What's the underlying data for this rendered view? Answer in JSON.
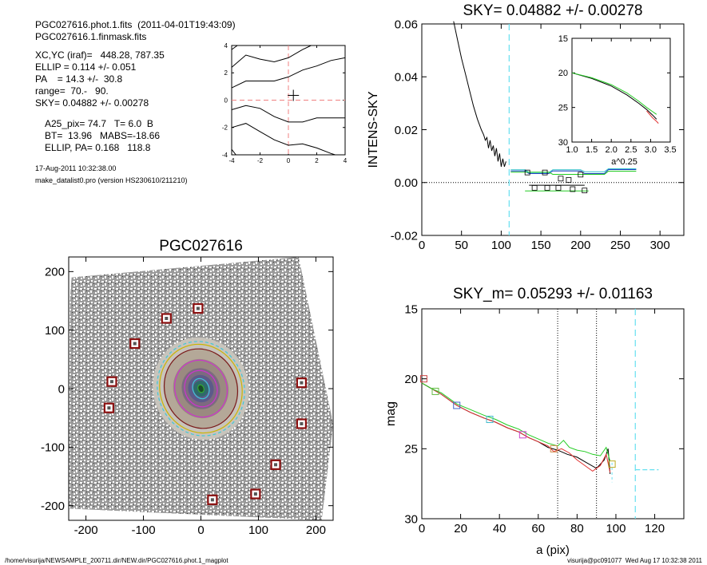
{
  "header": {
    "line1": "PGC027616.phot.1.fits  (2011-04-01T19:43:09)",
    "line2": "PGC027616.1.finmask.fits",
    "params": [
      "XC,YC (iraf)=   448.28, 787.35",
      "ELLIP = 0.114 +/- 0.051",
      "PA    = 14.3 +/-  30.8",
      "range=  70.-   90.",
      "SKY= 0.04882 +/- 0.00278"
    ],
    "derived": [
      "A25_pix= 74.7   T= 6.0  B",
      "BT=  13.96   MABS=-18.66",
      "ELLIP, PA= 0.168   118.8"
    ],
    "date": "17-Aug-2011 10:32:38.00",
    "program": "make_datalist0.pro (version HS230610/211210)"
  },
  "footer": {
    "path": "/home/visurija/NEWSAMPLE_200711.dir/NEW.dir/PGC027616.phot.1_magplot",
    "user": "visurija@pc091077  Wed Aug 17 10:32:38 2011"
  },
  "colors": {
    "axis": "#000000",
    "curve_black": "#000000",
    "curve_green": "#22cc22",
    "curve_red": "#e03030",
    "curve_blue": "#2040c0",
    "curve_cyan": "#30c0c8",
    "dashed_cyan": "#66e0f0",
    "dashed_red": "#f08080",
    "marker_red": "#cc4444",
    "marker_green": "#66bb44",
    "marker_blue": "#4466cc",
    "marker_cyan": "#44bbcc",
    "marker_magenta": "#cc44cc",
    "marker_yellow": "#bbaa22",
    "marker_orange": "#cc8844",
    "mask_box": "#8b1010",
    "ellipse_magenta": "#cc33cc",
    "ellipse_brown": "#7a1a1a",
    "ellipse_yellow": "#ccb400",
    "ellipse_cyan": "#40c8d8",
    "ellipse_green": "#33aa33"
  },
  "chart_data": [
    {
      "id": "contour",
      "type": "contour",
      "xlim": [
        -4,
        4
      ],
      "ylim": [
        -4,
        4
      ],
      "xticks": [
        "-4",
        "-2",
        "0",
        "2",
        "4"
      ],
      "yticks": [
        "-4",
        "-2",
        "0",
        "2",
        "4"
      ],
      "center": [
        0.35,
        0.35
      ]
    },
    {
      "id": "sky",
      "type": "line",
      "title": "SKY= 0.04882 +/- 0.00278",
      "xlabel": "",
      "ylabel": "INTENS-SKY",
      "xlim": [
        0,
        330
      ],
      "ylim": [
        -0.02,
        0.06
      ],
      "xticks": [
        "0",
        "50",
        "100",
        "150",
        "200",
        "250",
        "300"
      ],
      "yticks": [
        "0.06",
        "0.04",
        "0.02",
        "0.00",
        "-0.02"
      ],
      "series": [
        {
          "color": "curve_black",
          "points": [
            [
              40,
              0.061
            ],
            [
              45,
              0.054
            ],
            [
              50,
              0.047
            ],
            [
              55,
              0.041
            ],
            [
              60,
              0.035
            ],
            [
              65,
              0.029
            ],
            [
              70,
              0.024
            ],
            [
              75,
              0.02
            ],
            [
              78,
              0.018
            ],
            [
              80,
              0.016
            ],
            [
              82,
              0.017
            ],
            [
              84,
              0.013
            ],
            [
              86,
              0.016
            ],
            [
              88,
              0.012
            ],
            [
              90,
              0.014
            ],
            [
              92,
              0.01
            ],
            [
              94,
              0.013
            ],
            [
              96,
              0.008
            ],
            [
              98,
              0.011
            ],
            [
              100,
              0.006
            ],
            [
              102,
              0.009
            ],
            [
              104,
              0.006
            ],
            [
              106,
              0.008
            ]
          ]
        },
        {
          "color": "curve_blue",
          "points": [
            [
              112,
              0.0044
            ],
            [
              130,
              0.0044
            ],
            [
              135,
              0.0034
            ],
            [
              160,
              0.0034
            ],
            [
              165,
              0.0044
            ],
            [
              200,
              0.0044
            ],
            [
              205,
              0.0034
            ],
            [
              230,
              0.0034
            ],
            [
              235,
              0.0049
            ],
            [
              270,
              0.0049
            ]
          ]
        },
        {
          "color": "curve_cyan",
          "points": [
            [
              112,
              0.0048
            ],
            [
              130,
              0.0048
            ],
            [
              135,
              0.0038
            ],
            [
              160,
              0.0038
            ],
            [
              165,
              0.0048
            ],
            [
              200,
              0.0048
            ],
            [
              205,
              0.0041
            ],
            [
              230,
              0.0041
            ],
            [
              235,
              0.0052
            ],
            [
              270,
              0.0052
            ]
          ]
        },
        {
          "color": "curve_green",
          "points": [
            [
              112,
              0.0039
            ],
            [
              160,
              0.0039
            ],
            [
              165,
              0.0031
            ],
            [
              230,
              0.0031
            ],
            [
              235,
              0.0043
            ],
            [
              270,
              0.0043
            ]
          ]
        },
        {
          "color": "curve_green",
          "points": [
            [
              130,
              -0.0032
            ],
            [
              210,
              -0.0032
            ]
          ]
        },
        {
          "color": "curve_black",
          "points": [
            [
              135,
              -0.001
            ],
            [
              205,
              -0.001
            ]
          ]
        }
      ],
      "markers": [
        [
          133,
          0.0038
        ],
        [
          155,
          0.0038
        ],
        [
          175,
          0.0015
        ],
        [
          185,
          0.001
        ],
        [
          200,
          0.003
        ],
        [
          142,
          -0.002
        ],
        [
          158,
          -0.002
        ],
        [
          172,
          -0.002
        ],
        [
          190,
          -0.0025
        ],
        [
          205,
          -0.003
        ]
      ],
      "sky_level": 0.0,
      "vline_dashed": 110,
      "inset": {
        "xlim": [
          1.0,
          3.5
        ],
        "ylim": [
          15,
          30
        ],
        "xticks": [
          "1.0",
          "1.5",
          "2.0",
          "2.5",
          "3.0",
          "3.5"
        ],
        "yticks": [
          "15",
          "20",
          "25",
          "30"
        ],
        "xlabel": "a^0.25",
        "series": [
          {
            "color": "curve_black",
            "points": [
              [
                1.0,
                20.0
              ],
              [
                1.5,
                20.8
              ],
              [
                2.0,
                21.9
              ],
              [
                2.4,
                23.2
              ],
              [
                2.7,
                24.4
              ],
              [
                2.9,
                25.3
              ],
              [
                3.05,
                26.1
              ],
              [
                3.15,
                26.7
              ]
            ]
          },
          {
            "color": "curve_red",
            "points": [
              [
                2.9,
                25.5
              ],
              [
                3.05,
                26.5
              ],
              [
                3.15,
                27.0
              ],
              [
                3.2,
                27.3
              ]
            ]
          },
          {
            "color": "curve_green",
            "points": [
              [
                1.0,
                20.0
              ],
              [
                1.5,
                20.7
              ],
              [
                2.0,
                21.7
              ],
              [
                2.4,
                22.9
              ],
              [
                2.7,
                24.1
              ],
              [
                2.9,
                25.0
              ],
              [
                3.05,
                25.6
              ],
              [
                3.15,
                26.0
              ]
            ]
          }
        ]
      }
    },
    {
      "id": "image",
      "type": "image",
      "title": "PGC027616",
      "xlim": [
        -230,
        230
      ],
      "ylim": [
        -225,
        225
      ],
      "xticks": [
        "-200",
        "-100",
        "0",
        "100",
        "200"
      ],
      "yticks": [
        "200",
        "100",
        "0",
        "-100",
        "-200"
      ],
      "mask_boxes": [
        [
          -60,
          120
        ],
        [
          -5,
          137
        ],
        [
          -115,
          77
        ],
        [
          -155,
          12
        ],
        [
          -160,
          -33
        ],
        [
          175,
          10
        ],
        [
          175,
          -60
        ],
        [
          130,
          -130
        ],
        [
          95,
          -180
        ],
        [
          20,
          -190
        ]
      ],
      "ellipses": [
        {
          "a": 83,
          "b": 75,
          "pa": 20,
          "color": "ellipse_cyan",
          "dash": true
        },
        {
          "a": 78,
          "b": 71,
          "pa": 20,
          "color": "ellipse_yellow",
          "dash": false
        },
        {
          "a": 70,
          "b": 63,
          "pa": 20,
          "color": "ellipse_brown",
          "dash": false
        },
        {
          "a": 50,
          "b": 45,
          "pa": 20,
          "color": "ellipse_magenta",
          "dash": false
        },
        {
          "a": 32,
          "b": 28,
          "pa": 20,
          "color": "ellipse_magenta",
          "dash": false
        },
        {
          "a": 18,
          "b": 14,
          "pa": 20,
          "color": "ellipse_cyan",
          "dash": false
        },
        {
          "a": 7,
          "b": 5,
          "pa": 20,
          "color": "ellipse_green",
          "dash": false
        }
      ]
    },
    {
      "id": "mag",
      "type": "line",
      "title": "SKY_m=  0.05293 +/- 0.01163",
      "xlabel": "a (pix)",
      "ylabel": "mag",
      "xlim": [
        0,
        135
      ],
      "ylim": [
        15,
        30
      ],
      "xticks": [
        "0",
        "20",
        "40",
        "60",
        "80",
        "100",
        "120"
      ],
      "yticks": [
        "15",
        "20",
        "25",
        "30"
      ],
      "series": [
        {
          "color": "curve_black",
          "points": [
            [
              0,
              20.3
            ],
            [
              5,
              20.7
            ],
            [
              10,
              21.1
            ],
            [
              18,
              21.9
            ],
            [
              25,
              22.4
            ],
            [
              32,
              22.8
            ],
            [
              38,
              23.1
            ],
            [
              44,
              23.5
            ],
            [
              50,
              23.8
            ],
            [
              55,
              24.2
            ],
            [
              60,
              24.5
            ],
            [
              65,
              24.9
            ],
            [
              70,
              25.1
            ],
            [
              75,
              25.4
            ],
            [
              80,
              25.6
            ],
            [
              85,
              26.0
            ],
            [
              90,
              26.4
            ],
            [
              94,
              25.8
            ],
            [
              96,
              25.0
            ],
            [
              97,
              26.8
            ]
          ]
        },
        {
          "color": "curve_red",
          "points": [
            [
              0,
              20.3
            ],
            [
              5,
              20.7
            ],
            [
              10,
              21.1
            ],
            [
              18,
              21.9
            ],
            [
              25,
              22.4
            ],
            [
              32,
              22.8
            ],
            [
              38,
              23.1
            ],
            [
              44,
              23.5
            ],
            [
              50,
              23.8
            ],
            [
              55,
              24.2
            ],
            [
              60,
              24.5
            ],
            [
              65,
              24.8
            ],
            [
              68,
              25.2
            ],
            [
              72,
              25.0
            ],
            [
              76,
              25.3
            ],
            [
              80,
              25.8
            ],
            [
              84,
              26.2
            ],
            [
              88,
              26.6
            ],
            [
              92,
              26.2
            ],
            [
              95,
              25.4
            ],
            [
              97,
              26.7
            ]
          ]
        },
        {
          "color": "curve_green",
          "points": [
            [
              0,
              20.3
            ],
            [
              5,
              20.7
            ],
            [
              10,
              21.0
            ],
            [
              18,
              21.8
            ],
            [
              25,
              22.2
            ],
            [
              32,
              22.6
            ],
            [
              38,
              22.9
            ],
            [
              44,
              23.3
            ],
            [
              50,
              23.6
            ],
            [
              55,
              24.0
            ],
            [
              60,
              24.3
            ],
            [
              65,
              24.6
            ],
            [
              70,
              24.8
            ],
            [
              73,
              24.4
            ],
            [
              76,
              24.9
            ],
            [
              80,
              25.1
            ],
            [
              84,
              25.2
            ],
            [
              88,
              25.4
            ],
            [
              92,
              25.5
            ],
            [
              95,
              24.9
            ],
            [
              97,
              25.9
            ]
          ]
        }
      ],
      "markers": [
        {
          "x": 1,
          "y": 20.0,
          "color": "marker_red"
        },
        {
          "x": 7,
          "y": 20.9,
          "color": "marker_green"
        },
        {
          "x": 18,
          "y": 21.9,
          "color": "marker_blue"
        },
        {
          "x": 35,
          "y": 22.9,
          "color": "marker_cyan"
        },
        {
          "x": 52,
          "y": 24.0,
          "color": "marker_magenta"
        },
        {
          "x": 68,
          "y": 25.0,
          "color": "marker_orange"
        },
        {
          "x": 98,
          "y": 26.1,
          "color": "marker_yellow"
        }
      ],
      "vlines_dotted": [
        70,
        90
      ],
      "vline_dashed": 110,
      "sky_segment": {
        "x": [
          110,
          122
        ],
        "y": 26.5
      }
    }
  ]
}
